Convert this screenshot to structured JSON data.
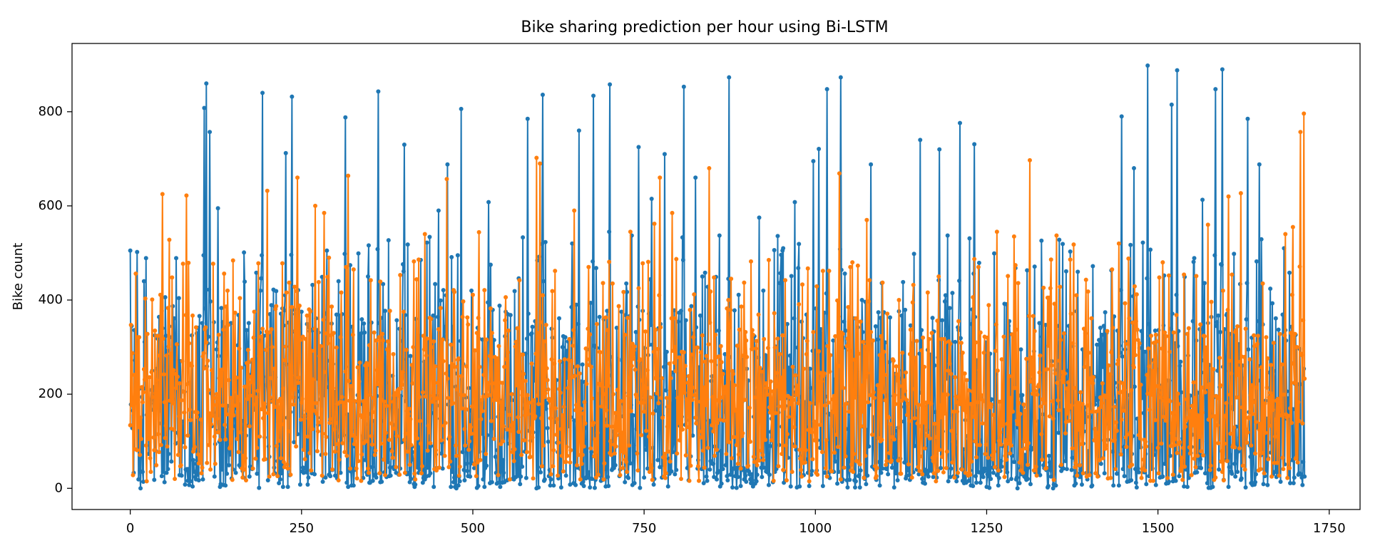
{
  "chart_data": {
    "type": "line",
    "title": "Bike sharing prediction per hour using Bi-LSTM",
    "xlabel": "",
    "ylabel": "Bike count",
    "xlim": [
      -85,
      1795
    ],
    "ylim": [
      -45,
      945
    ],
    "x_ticks": [
      0,
      250,
      500,
      750,
      1000,
      1250,
      1500,
      1750
    ],
    "y_ticks": [
      0,
      200,
      400,
      600,
      800
    ],
    "grid": false,
    "legend": "none",
    "n_points": 1715,
    "marker": "circle",
    "series": [
      {
        "color": "#1f77b4",
        "peaks": [
          [
            0,
            505
          ],
          [
            10,
            502
          ],
          [
            108,
            808
          ],
          [
            111,
            860
          ],
          [
            116,
            757
          ],
          [
            128,
            595
          ],
          [
            193,
            840
          ],
          [
            227,
            712
          ],
          [
            236,
            832
          ],
          [
            314,
            788
          ],
          [
            362,
            843
          ],
          [
            400,
            730
          ],
          [
            450,
            590
          ],
          [
            463,
            688
          ],
          [
            483,
            806
          ],
          [
            523,
            608
          ],
          [
            580,
            785
          ],
          [
            602,
            836
          ],
          [
            655,
            760
          ],
          [
            676,
            834
          ],
          [
            700,
            858
          ],
          [
            742,
            725
          ],
          [
            761,
            615
          ],
          [
            780,
            710
          ],
          [
            808,
            853
          ],
          [
            825,
            660
          ],
          [
            874,
            873
          ],
          [
            918,
            575
          ],
          [
            970,
            608
          ],
          [
            997,
            695
          ],
          [
            1005,
            721
          ],
          [
            1017,
            848
          ],
          [
            1037,
            873
          ],
          [
            1081,
            688
          ],
          [
            1153,
            740
          ],
          [
            1181,
            720
          ],
          [
            1211,
            776
          ],
          [
            1232,
            731
          ],
          [
            1447,
            790
          ],
          [
            1465,
            680
          ],
          [
            1485,
            898
          ],
          [
            1520,
            815
          ],
          [
            1528,
            888
          ],
          [
            1565,
            613
          ],
          [
            1584,
            848
          ],
          [
            1594,
            890
          ],
          [
            1631,
            785
          ],
          [
            1648,
            688
          ]
        ],
        "values_summary": {
          "min": 0,
          "max": 898,
          "typical_range": [
            0,
            400
          ]
        }
      },
      {
        "color": "#ff7f0e",
        "peaks": [
          [
            47,
            625
          ],
          [
            57,
            528
          ],
          [
            82,
            622
          ],
          [
            200,
            632
          ],
          [
            244,
            660
          ],
          [
            270,
            600
          ],
          [
            283,
            585
          ],
          [
            318,
            664
          ],
          [
            430,
            540
          ],
          [
            462,
            657
          ],
          [
            509,
            544
          ],
          [
            593,
            702
          ],
          [
            598,
            690
          ],
          [
            648,
            590
          ],
          [
            730,
            545
          ],
          [
            765,
            562
          ],
          [
            773,
            660
          ],
          [
            791,
            585
          ],
          [
            845,
            680
          ],
          [
            1035,
            669
          ],
          [
            1075,
            570
          ],
          [
            1265,
            545
          ],
          [
            1290,
            535
          ],
          [
            1313,
            697
          ],
          [
            1352,
            537
          ],
          [
            1377,
            518
          ],
          [
            1443,
            520
          ],
          [
            1573,
            560
          ],
          [
            1603,
            620
          ],
          [
            1621,
            627
          ],
          [
            1686,
            540
          ],
          [
            1697,
            555
          ],
          [
            1708,
            757
          ],
          [
            1713,
            796
          ]
        ],
        "values_summary": {
          "min": 0,
          "max": 796,
          "typical_range": [
            30,
            350
          ]
        }
      }
    ]
  }
}
